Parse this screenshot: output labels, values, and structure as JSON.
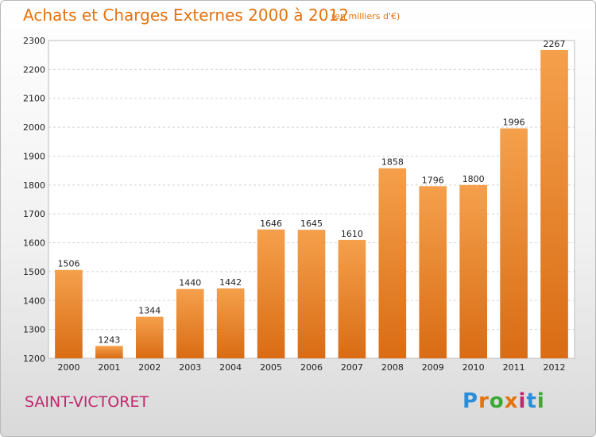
{
  "chart_data": {
    "type": "bar",
    "title": "Achats et Charges Externes 2000 à 2012",
    "subtitle": "(en milliers d'€)",
    "categories": [
      "2000",
      "2001",
      "2002",
      "2003",
      "2004",
      "2005",
      "2006",
      "2007",
      "2008",
      "2009",
      "2010",
      "2011",
      "2012"
    ],
    "values": [
      1506,
      1243,
      1344,
      1440,
      1442,
      1646,
      1645,
      1610,
      1858,
      1796,
      1800,
      1996,
      2267
    ],
    "ylim": [
      1200,
      2300
    ],
    "yticks": [
      1200,
      1300,
      1400,
      1500,
      1600,
      1700,
      1800,
      1900,
      2000,
      2100,
      2200,
      2300
    ],
    "grid": true,
    "bar_color_top": "#f5a04c",
    "bar_color_bottom": "#d96c14"
  },
  "footer": {
    "town": "SAINT-VICTORET",
    "town_color": "#c0276d"
  },
  "logo": {
    "text": "Proxiti",
    "letter_colors": [
      "#2a8fd8",
      "#e2730f",
      "#3aaa35",
      "#e2730f",
      "#c0276d",
      "#2a8fd8",
      "#3aaa35"
    ]
  }
}
